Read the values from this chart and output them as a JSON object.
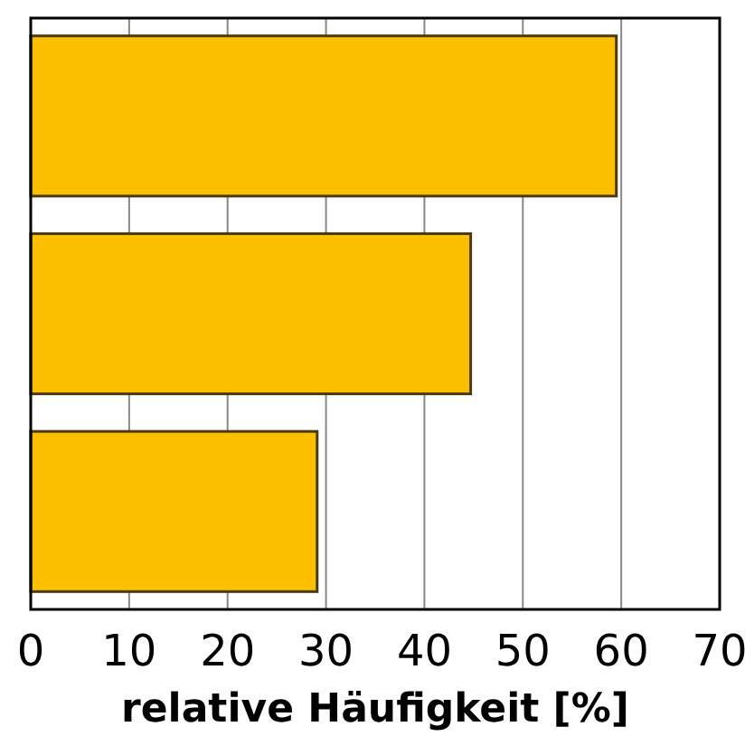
{
  "chart_data": {
    "type": "bar",
    "orientation": "horizontal",
    "xlabel": "relative Häufigkeit [%]",
    "categories": [
      null,
      null,
      null
    ],
    "values": [
      59.5,
      44.7,
      29.1
    ],
    "color": "#fbbf00",
    "xlim": [
      0,
      70
    ],
    "xticks": [
      0,
      10,
      20,
      30,
      40,
      50,
      60,
      70
    ],
    "grid": "x"
  }
}
